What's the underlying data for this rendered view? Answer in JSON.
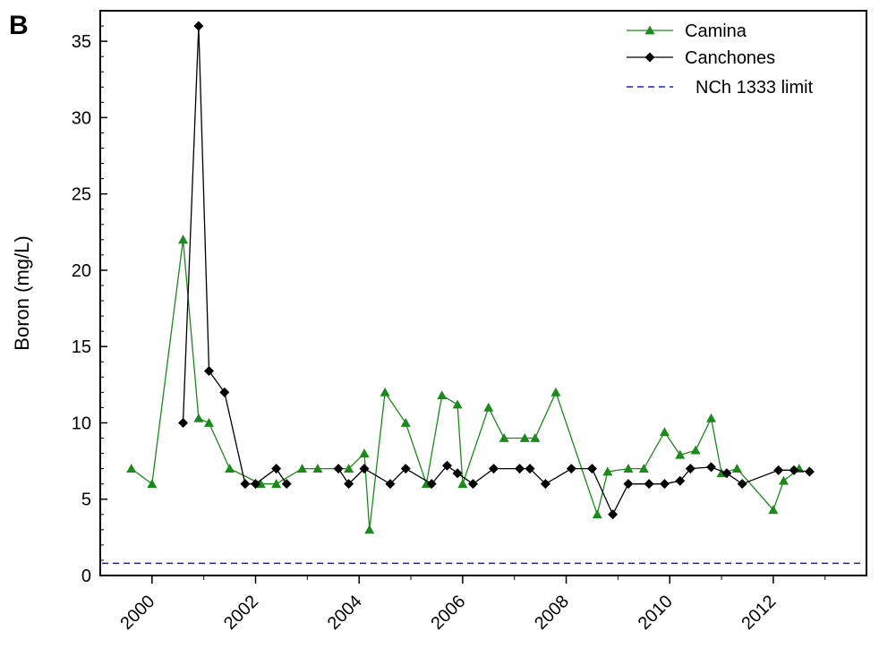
{
  "panel_label": "B",
  "colors": {
    "camina": "#1a8a1a",
    "canchones": "#000000",
    "limit": "#1f1fb4",
    "axis": "#000000"
  },
  "chart_data": {
    "type": "line",
    "title": "",
    "xlabel": "",
    "ylabel": "Boron (mg/L)",
    "xlim": [
      1999.0,
      2013.8
    ],
    "ylim": [
      0,
      37
    ],
    "x_ticks": [
      2000,
      2002,
      2004,
      2006,
      2008,
      2010,
      2012
    ],
    "x_tick_labels": [
      "2000",
      "2002",
      "2004",
      "2006",
      "2008",
      "2010",
      "2012"
    ],
    "y_ticks": [
      0,
      5,
      10,
      15,
      20,
      25,
      30,
      35
    ],
    "y_tick_labels": [
      "0",
      "5",
      "10",
      "15",
      "20",
      "25",
      "30",
      "35"
    ],
    "grid": false,
    "legend": "top-right",
    "series": [
      {
        "name": "Camina",
        "marker": "triangle",
        "segments": [
          [
            [
              1999.6,
              7
            ],
            [
              2000.0,
              6
            ],
            [
              2000.6,
              22
            ],
            [
              2000.9,
              10.3
            ],
            [
              2001.1,
              10
            ],
            [
              2001.5,
              7
            ],
            [
              2002.1,
              6
            ],
            [
              2002.4,
              6
            ],
            [
              2002.9,
              7
            ],
            [
              2003.2,
              7
            ],
            [
              2003.8,
              7
            ],
            [
              2004.1,
              8
            ],
            [
              2004.2,
              3
            ],
            [
              2004.5,
              12
            ],
            [
              2004.9,
              10
            ],
            [
              2005.3,
              6
            ],
            [
              2005.6,
              11.8
            ],
            [
              2005.9,
              11.2
            ],
            [
              2006.0,
              6
            ],
            [
              2006.5,
              11
            ],
            [
              2006.8,
              9
            ],
            [
              2007.2,
              9
            ],
            [
              2007.4,
              9
            ],
            [
              2007.8,
              12
            ],
            [
              2008.6,
              4
            ],
            [
              2008.8,
              6.8
            ],
            [
              2009.2,
              7
            ],
            [
              2009.5,
              7
            ],
            [
              2009.9,
              9.4
            ],
            [
              2010.2,
              7.9
            ],
            [
              2010.5,
              8.2
            ],
            [
              2010.8,
              10.3
            ],
            [
              2011.0,
              6.7
            ],
            [
              2011.3,
              7
            ],
            [
              2012.0,
              4.3
            ],
            [
              2012.2,
              6.2
            ],
            [
              2012.5,
              7
            ]
          ]
        ]
      },
      {
        "name": "Canchones",
        "marker": "diamond",
        "segments": [
          [
            [
              2000.6,
              10
            ],
            [
              2000.9,
              36
            ],
            [
              2001.1,
              13.4
            ],
            [
              2001.4,
              12
            ],
            [
              2001.8,
              6
            ],
            [
              2002.0,
              6
            ],
            [
              2002.4,
              7
            ],
            [
              2002.6,
              6
            ]
          ],
          [
            [
              2003.6,
              7
            ],
            [
              2003.8,
              6
            ],
            [
              2004.1,
              7
            ],
            [
              2004.6,
              6
            ],
            [
              2004.9,
              7
            ],
            [
              2005.4,
              6
            ],
            [
              2005.7,
              7.2
            ],
            [
              2005.9,
              6.7
            ],
            [
              2006.2,
              6
            ],
            [
              2006.6,
              7
            ],
            [
              2007.1,
              7
            ],
            [
              2007.3,
              7
            ],
            [
              2007.6,
              6
            ],
            [
              2008.1,
              7
            ],
            [
              2008.5,
              7
            ],
            [
              2008.9,
              4
            ],
            [
              2009.2,
              6
            ],
            [
              2009.6,
              6
            ],
            [
              2009.9,
              6
            ],
            [
              2010.2,
              6.2
            ],
            [
              2010.4,
              7
            ],
            [
              2010.8,
              7.1
            ],
            [
              2011.1,
              6.7
            ],
            [
              2011.4,
              6
            ],
            [
              2012.1,
              6.9
            ],
            [
              2012.4,
              6.9
            ],
            [
              2012.7,
              6.8
            ]
          ]
        ]
      }
    ],
    "reference_lines": [
      {
        "name": "NCh 1333 limit",
        "y": 0.8,
        "style": "dashed"
      }
    ]
  }
}
